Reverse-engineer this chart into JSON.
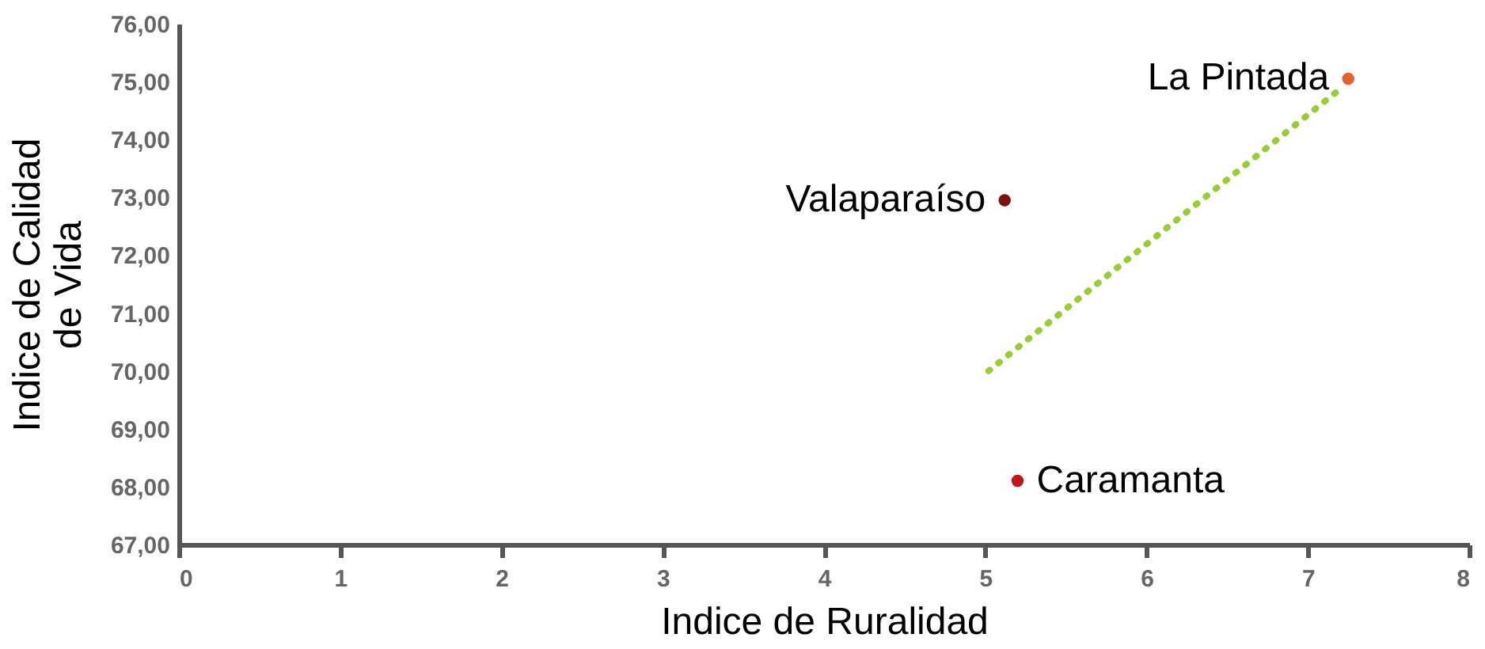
{
  "chart_data": {
    "type": "scatter",
    "xlabel": "Indice de Ruralidad",
    "ylabel": "Indice de Calidad\nde Vida",
    "xlim": [
      0,
      8
    ],
    "xticks": [
      0,
      1,
      2,
      3,
      4,
      5,
      6,
      7,
      8
    ],
    "ylim": [
      67,
      76
    ],
    "yticks": [
      {
        "value": 67,
        "label": "67,00"
      },
      {
        "value": 68,
        "label": "68,00"
      },
      {
        "value": 69,
        "label": "69,00"
      },
      {
        "value": 70,
        "label": "70,00"
      },
      {
        "value": 71,
        "label": "71,00"
      },
      {
        "value": 72,
        "label": "72,00"
      },
      {
        "value": 73,
        "label": "73,00"
      },
      {
        "value": 74,
        "label": "74,00"
      },
      {
        "value": 75,
        "label": "75,00"
      },
      {
        "value": 76,
        "label": "76,00"
      }
    ],
    "grid": false,
    "marker": "circle",
    "series": [
      {
        "name": "La Pintada",
        "color": "#e8602c",
        "x": [
          7.25
        ],
        "values": [
          75.05
        ]
      },
      {
        "name": "Valaparaíso",
        "color": "#7b1010",
        "x": [
          5.12
        ],
        "values": [
          72.95
        ]
      },
      {
        "name": "Caramanta",
        "color": "#c0161c",
        "x": [
          5.2
        ],
        "values": [
          68.1
        ]
      },
      {
        "type": "line",
        "color": "#9acd32",
        "line_style": "dotted",
        "marker": "none",
        "x": [
          5.02,
          7.19
        ],
        "values": [
          70.0,
          74.85
        ]
      }
    ]
  }
}
